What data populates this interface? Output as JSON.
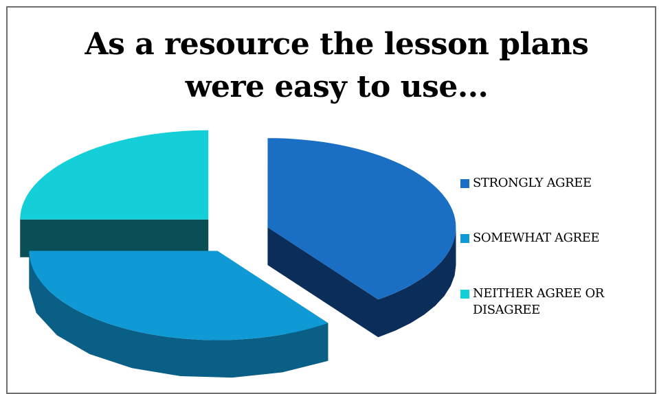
{
  "chart_data": {
    "type": "pie",
    "title": "As a resource the lesson plans were easy to use...",
    "title_lines": [
      "As a resource the lesson plans",
      "were easy to use..."
    ],
    "categories": [
      "STRONGLY AGREE",
      "SOMEWHAT AGREE",
      "NEITHER AGREE OR DISAGREE"
    ],
    "values": [
      40,
      35,
      25
    ],
    "colors": [
      "#1a6ec4",
      "#0f9ad6",
      "#14cfd8"
    ],
    "side_colors": [
      "#0b2d5a",
      "#0a5f86",
      "#0a4f55"
    ],
    "legend_position": "right",
    "three_d": true,
    "exploded": true
  }
}
